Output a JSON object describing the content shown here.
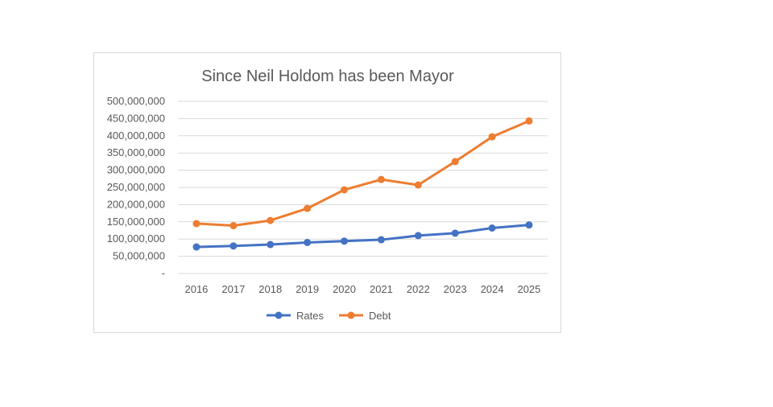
{
  "chart_data": {
    "type": "line",
    "title": "Since Neil Holdom has been Mayor",
    "categories": [
      "2016",
      "2017",
      "2018",
      "2019",
      "2020",
      "2021",
      "2022",
      "2023",
      "2024",
      "2025"
    ],
    "y_ticks": [
      "-",
      "50,000,000",
      "100,000,000",
      "150,000,000",
      "200,000,000",
      "250,000,000",
      "300,000,000",
      "350,000,000",
      "400,000,000",
      "450,000,000",
      "500,000,000"
    ],
    "ylim": [
      0,
      500000000
    ],
    "grid": true,
    "legend_position": "bottom",
    "series": [
      {
        "name": "Rates",
        "color": "#4472c4",
        "values": [
          77000000,
          80000000,
          84000000,
          90000000,
          94000000,
          98000000,
          110000000,
          117000000,
          132000000,
          141000000
        ]
      },
      {
        "name": "Debt",
        "color": "#ed7d31",
        "values": [
          145000000,
          139000000,
          154000000,
          189000000,
          243000000,
          273000000,
          257000000,
          325000000,
          397000000,
          443000000
        ]
      }
    ]
  }
}
